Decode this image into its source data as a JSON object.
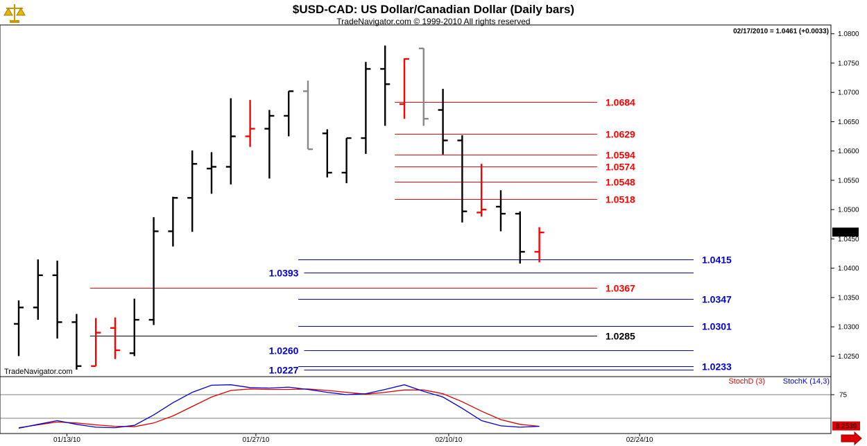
{
  "chart_data": [
    {
      "type": "ohlc",
      "title": "$USD-CAD:  US Dollar/Canadian Dollar  (Daily bars)",
      "subtitle": "TradeNavigator.com © 1999-2010 All rights reserved",
      "readout": "02/17/2010 = 1.0461 (+0.0033)",
      "watermark": "TradeNavigator.com",
      "last_price_tag": "1.0461",
      "ylim": [
        1.0215,
        1.0815
      ],
      "yticks": [
        "1.0800",
        "1.0750",
        "1.0700",
        "1.0650",
        "1.0600",
        "1.0550",
        "1.0500",
        "1.0450",
        "1.0400",
        "1.0350",
        "1.0300",
        "1.0250"
      ],
      "xticks": [
        {
          "label": "01/13/10",
          "index": 2.5
        },
        {
          "label": "01/27/10",
          "index": 12.3
        },
        {
          "label": "02/10/10",
          "index": 22.3
        },
        {
          "label": "02/24/10",
          "index": 32.2
        }
      ],
      "bars": [
        {
          "o": 1.0305,
          "h": 1.0345,
          "l": 1.025,
          "c": 1.0333,
          "color": "#000000"
        },
        {
          "o": 1.0333,
          "h": 1.0415,
          "l": 1.0312,
          "c": 1.0388,
          "color": "#000000"
        },
        {
          "o": 1.0388,
          "h": 1.0413,
          "l": 1.028,
          "c": 1.0308,
          "color": "#000000"
        },
        {
          "o": 1.0308,
          "h": 1.0322,
          "l": 1.0227,
          "c": 1.0233,
          "color": "#000000"
        },
        {
          "o": 1.0233,
          "h": 1.0315,
          "l": 1.0233,
          "c": 1.029,
          "color": "#ff0000"
        },
        {
          "o": 1.0298,
          "h": 1.0316,
          "l": 1.0245,
          "c": 1.026,
          "color": "#ff0000"
        },
        {
          "o": 1.0255,
          "h": 1.0348,
          "l": 1.025,
          "c": 1.0312,
          "color": "#000000"
        },
        {
          "o": 1.0312,
          "h": 1.0487,
          "l": 1.0303,
          "c": 1.0463,
          "color": "#000000"
        },
        {
          "o": 1.0463,
          "h": 1.0522,
          "l": 1.0437,
          "c": 1.052,
          "color": "#000000"
        },
        {
          "o": 1.052,
          "h": 1.0601,
          "l": 1.0462,
          "c": 1.0578,
          "color": "#000000"
        },
        {
          "o": 1.057,
          "h": 1.0598,
          "l": 1.0527,
          "c": 1.0573,
          "color": "#000000"
        },
        {
          "o": 1.0573,
          "h": 1.069,
          "l": 1.0543,
          "c": 1.0625,
          "color": "#000000"
        },
        {
          "o": 1.0625,
          "h": 1.0687,
          "l": 1.0607,
          "c": 1.0638,
          "color": "#ff0000"
        },
        {
          "o": 1.0638,
          "h": 1.067,
          "l": 1.0553,
          "c": 1.066,
          "color": "#000000"
        },
        {
          "o": 1.066,
          "h": 1.0702,
          "l": 1.0625,
          "c": 1.0702,
          "color": "#000000"
        },
        {
          "o": 1.0702,
          "h": 1.072,
          "l": 1.0603,
          "c": 1.0603,
          "color": "#888888"
        },
        {
          "o": 1.063,
          "h": 1.0637,
          "l": 1.0555,
          "c": 1.0563,
          "color": "#000000"
        },
        {
          "o": 1.0563,
          "h": 1.0622,
          "l": 1.0545,
          "c": 1.0622,
          "color": "#000000"
        },
        {
          "o": 1.0622,
          "h": 1.0752,
          "l": 1.0595,
          "c": 1.074,
          "color": "#000000"
        },
        {
          "o": 1.074,
          "h": 1.078,
          "l": 1.0643,
          "c": 1.0714,
          "color": "#000000"
        },
        {
          "o": 1.068,
          "h": 1.0758,
          "l": 1.0655,
          "c": 1.0757,
          "color": "#ff0000"
        },
        {
          "o": 1.0775,
          "h": 1.0775,
          "l": 1.0643,
          "c": 1.0655,
          "color": "#888888"
        },
        {
          "o": 1.067,
          "h": 1.0706,
          "l": 1.0594,
          "c": 1.0618,
          "color": "#000000"
        },
        {
          "o": 1.0618,
          "h": 1.0627,
          "l": 1.0478,
          "c": 1.0497,
          "color": "#000000"
        },
        {
          "o": 1.0495,
          "h": 1.0578,
          "l": 1.0488,
          "c": 1.05,
          "color": "#ff0000"
        },
        {
          "o": 1.0505,
          "h": 1.0533,
          "l": 1.0463,
          "c": 1.0493,
          "color": "#000000"
        },
        {
          "o": 1.0493,
          "h": 1.0497,
          "l": 1.0408,
          "c": 1.0428,
          "color": "#000000"
        },
        {
          "o": 1.0428,
          "h": 1.047,
          "l": 1.041,
          "c": 1.0461,
          "color": "#ff0000"
        }
      ],
      "levels": [
        {
          "value": 1.0684,
          "label": "1.0684",
          "color": "#ff0000",
          "from": 19.5,
          "to": 30.0,
          "label_side": "right"
        },
        {
          "value": 1.0629,
          "label": "1.0629",
          "color": "#ff0000",
          "from": 19.5,
          "to": 30.0,
          "label_side": "right"
        },
        {
          "value": 1.0594,
          "label": "1.0594",
          "color": "#ff0000",
          "from": 19.5,
          "to": 30.0,
          "label_side": "right"
        },
        {
          "value": 1.0574,
          "label": "1.0574",
          "color": "#ff0000",
          "from": 19.5,
          "to": 30.0,
          "label_side": "right"
        },
        {
          "value": 1.0548,
          "label": "1.0548",
          "color": "#ff0000",
          "from": 19.5,
          "to": 30.0,
          "label_side": "right"
        },
        {
          "value": 1.0518,
          "label": "1.0518",
          "color": "#ff0000",
          "from": 19.5,
          "to": 30.0,
          "label_side": "right"
        },
        {
          "value": 1.0415,
          "label": "1.0415",
          "color": "#0000cc",
          "from": 14.5,
          "to": 35.0,
          "label_side": "right"
        },
        {
          "value": 1.0393,
          "label": "1.0393",
          "color": "#0000cc",
          "from": 14.8,
          "to": 35.0,
          "label_side": "left"
        },
        {
          "value": 1.0367,
          "label": "1.0367",
          "color": "#ff0000",
          "from": 3.7,
          "to": 30.0,
          "label_side": "right"
        },
        {
          "value": 1.0347,
          "label": "1.0347",
          "color": "#0000cc",
          "from": 14.5,
          "to": 35.0,
          "label_side": "right"
        },
        {
          "value": 1.0301,
          "label": "1.0301",
          "color": "#0000cc",
          "from": 14.5,
          "to": 35.0,
          "label_side": "right"
        },
        {
          "value": 1.0285,
          "label": "1.0285",
          "color": "#000000",
          "from": 3.7,
          "to": 30.0,
          "label_side": "right"
        },
        {
          "value": 1.026,
          "label": "1.0260",
          "color": "#0000cc",
          "from": 14.8,
          "to": 35.0,
          "label_side": "left"
        },
        {
          "value": 1.0233,
          "label": "1.0233",
          "color": "#0000cc",
          "from": 14.5,
          "to": 35.0,
          "label_side": "right"
        },
        {
          "value": 1.0227,
          "label": "1.0227",
          "color": "#0000cc",
          "from": 14.8,
          "to": 35.0,
          "label_side": "left"
        }
      ]
    },
    {
      "type": "line",
      "title": "",
      "ylim": [
        0,
        100
      ],
      "yticks": [
        "75"
      ],
      "reference_lines": [
        75,
        25
      ],
      "last_value_tag": "8.2539",
      "series": [
        {
          "name": "StochD (3)",
          "color": "#dd0000",
          "values": [
            5,
            11,
            17,
            15,
            11,
            8,
            7,
            15,
            30,
            50,
            70,
            84,
            87,
            86,
            86,
            87,
            84,
            80,
            76,
            80,
            85,
            85,
            77,
            60,
            40,
            22,
            12,
            8
          ]
        },
        {
          "name": "StochK (14,3)",
          "color": "#0000cc",
          "values": [
            4,
            12,
            20,
            12,
            6,
            5,
            10,
            32,
            58,
            80,
            95,
            96,
            90,
            89,
            91,
            86,
            80,
            75,
            77,
            86,
            96,
            82,
            70,
            46,
            20,
            9,
            6,
            8
          ]
        }
      ]
    }
  ]
}
